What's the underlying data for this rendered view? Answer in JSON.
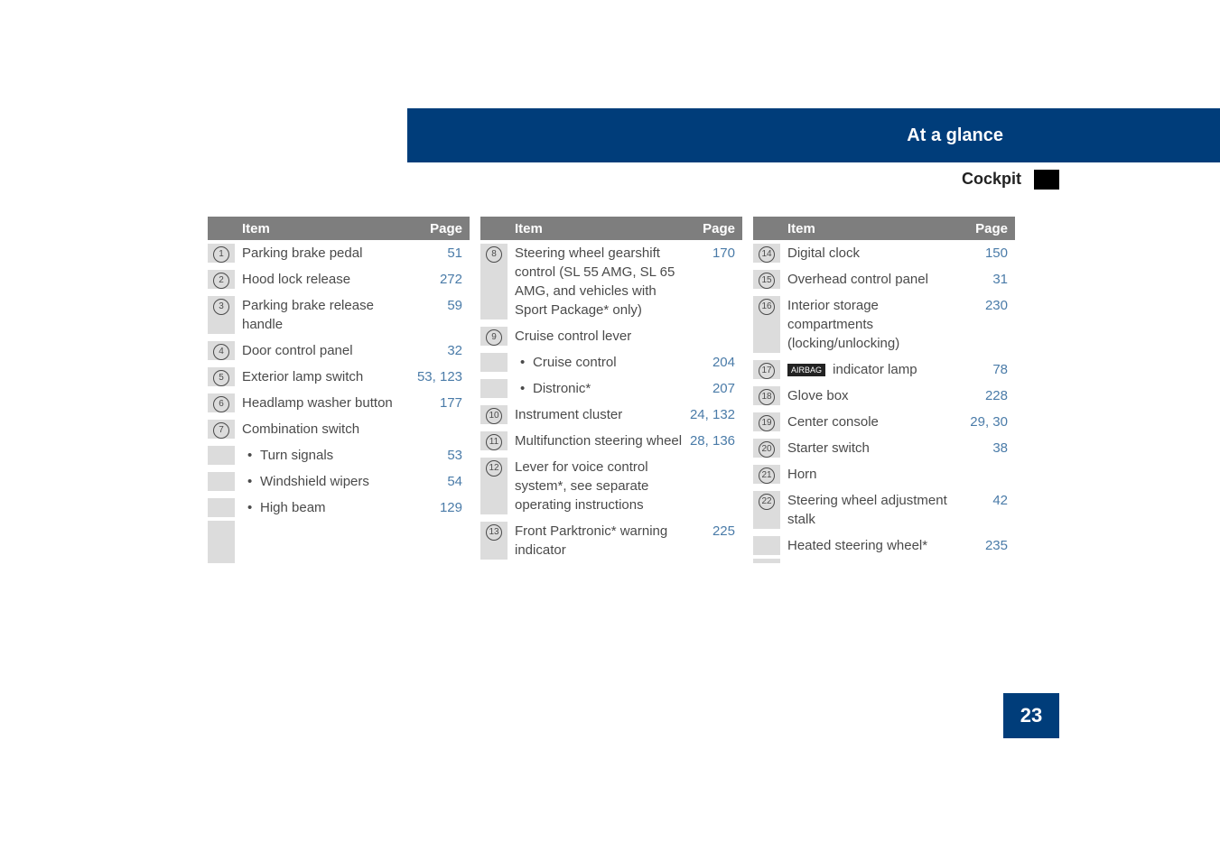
{
  "header": {
    "title": "At a glance",
    "subtitle": "Cockpit",
    "band_color": "#003d7a"
  },
  "page_number": "23",
  "columns": [
    {
      "header_item": "Item",
      "header_page": "Page",
      "rows": [
        {
          "num": "1",
          "item": "Parking brake pedal",
          "page": "51"
        },
        {
          "num": "2",
          "item": "Hood lock release",
          "page": "272"
        },
        {
          "num": "3",
          "item": "Parking brake release handle",
          "page": "59"
        },
        {
          "num": "4",
          "item": "Door control panel",
          "page": "32"
        },
        {
          "num": "5",
          "item": "Exterior lamp switch",
          "page": "53, 123"
        },
        {
          "num": "6",
          "item": "Headlamp washer button",
          "page": "177"
        },
        {
          "num": "7",
          "item": "Combination switch",
          "page": ""
        },
        {
          "bullet": true,
          "item": "Turn signals",
          "page": "53"
        },
        {
          "bullet": true,
          "item": "Windshield wipers",
          "page": "54"
        },
        {
          "bullet": true,
          "item": "High beam",
          "page": "129"
        }
      ]
    },
    {
      "header_item": "Item",
      "header_page": "Page",
      "rows": [
        {
          "num": "8",
          "item": "Steering wheel gearshift control\n(SL 55 AMG, SL 65 AMG, and vehicles with Sport Package* only)",
          "page": "170"
        },
        {
          "num": "9",
          "item": "Cruise control lever",
          "page": ""
        },
        {
          "bullet": true,
          "item": "Cruise control",
          "page": "204"
        },
        {
          "bullet": true,
          "item": "Distronic*",
          "page": "207"
        },
        {
          "num": "10",
          "item": "Instrument cluster",
          "page": "24, 132"
        },
        {
          "num": "11",
          "item": "Multifunction steering wheel",
          "page": "28, 136"
        },
        {
          "num": "12",
          "item": "Lever for voice control system*, see separate operating instructions",
          "page": ""
        },
        {
          "num": "13",
          "item": "Front Parktronic* warning indicator",
          "page": "225"
        }
      ]
    },
    {
      "header_item": "Item",
      "header_page": "Page",
      "rows": [
        {
          "num": "14",
          "item": "Digital clock",
          "page": "150"
        },
        {
          "num": "15",
          "item": "Overhead control panel",
          "page": "31"
        },
        {
          "num": "16",
          "item": "Interior storage compartments (locking/unlocking)",
          "page": "230"
        },
        {
          "num": "17",
          "airbag": true,
          "item": " indicator lamp",
          "page": "78"
        },
        {
          "num": "18",
          "item": "Glove box",
          "page": "228"
        },
        {
          "num": "19",
          "item": "Center console",
          "page": "29, 30"
        },
        {
          "num": "20",
          "item": "Starter switch",
          "page": "38"
        },
        {
          "num": "21",
          "item": "Horn",
          "page": ""
        },
        {
          "num": "22",
          "item": "Steering wheel adjustment stalk",
          "page": "42"
        },
        {
          "num": "",
          "item": "Heated steering wheel*",
          "page": "235"
        }
      ]
    }
  ],
  "airbag_label": "AIRBAG"
}
